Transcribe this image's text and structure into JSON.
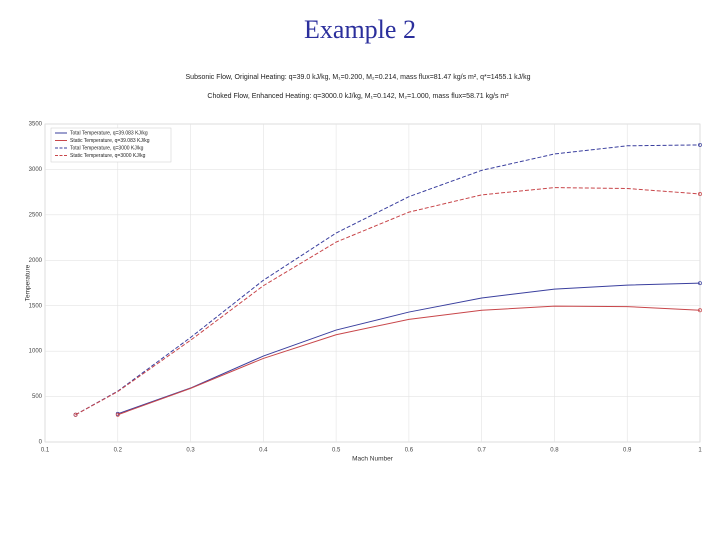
{
  "title": "Example 2",
  "chart_data": {
    "type": "line",
    "subtitle": [
      "Subsonic Flow, Original Heating: q=39.0 kJ/kg, M₁=0.200, M₂=0.214, mass flux=81.47 kg/s m², q*=1455.1 kJ/kg",
      "Choked Flow, Enhanced Heating: q=3000.0 kJ/kg, M₁=0.142, M₂=1.000, mass flux=58.71 kg/s m²"
    ],
    "x_label": "Mach Number",
    "y_label": "Temperature",
    "xlim": [
      0.1,
      1
    ],
    "xticks": [
      0.1,
      0.2,
      0.3,
      0.4,
      0.5,
      0.6,
      0.7,
      0.8,
      0.9,
      1
    ],
    "ylim": [
      0,
      3500
    ],
    "yticks": [
      0,
      500,
      1000,
      1500,
      2000,
      2500,
      3000,
      3500
    ],
    "grid": true,
    "legend": "upper left",
    "series": [
      {
        "name": "Total Temperature, q=39.083 KJ/kg",
        "color": "#3a3f9e",
        "dash": false,
        "x": [
          0.2,
          0.3,
          0.4,
          0.5,
          0.6,
          0.7,
          0.8,
          0.9,
          1
        ],
        "values": [
          310,
          594,
          946,
          1232,
          1430,
          1585,
          1683,
          1727,
          1748
        ]
      },
      {
        "name": "Static Temperature, q=39.083 KJ/kg",
        "color": "#c8464a",
        "dash": false,
        "x": [
          0.2,
          0.3,
          0.4,
          0.5,
          0.6,
          0.7,
          0.8,
          0.9,
          1
        ],
        "values": [
          300,
          590,
          920,
          1180,
          1350,
          1450,
          1495,
          1490,
          1450
        ]
      },
      {
        "name": "Total Temperature, q=3000 KJ/kg",
        "color": "#3a3f9e",
        "dash": true,
        "x": [
          0.142,
          0.2,
          0.3,
          0.4,
          0.5,
          0.6,
          0.7,
          0.8,
          0.9,
          1
        ],
        "values": [
          300,
          560,
          1150,
          1780,
          2300,
          2700,
          2990,
          3170,
          3260,
          3270
        ]
      },
      {
        "name": "Static Temperature, q=3000 KJ/kg",
        "color": "#c8464a",
        "dash": true,
        "x": [
          0.142,
          0.2,
          0.3,
          0.4,
          0.5,
          0.6,
          0.7,
          0.8,
          0.9,
          1
        ],
        "values": [
          300,
          555,
          1120,
          1720,
          2200,
          2530,
          2720,
          2800,
          2790,
          2730
        ]
      }
    ]
  }
}
